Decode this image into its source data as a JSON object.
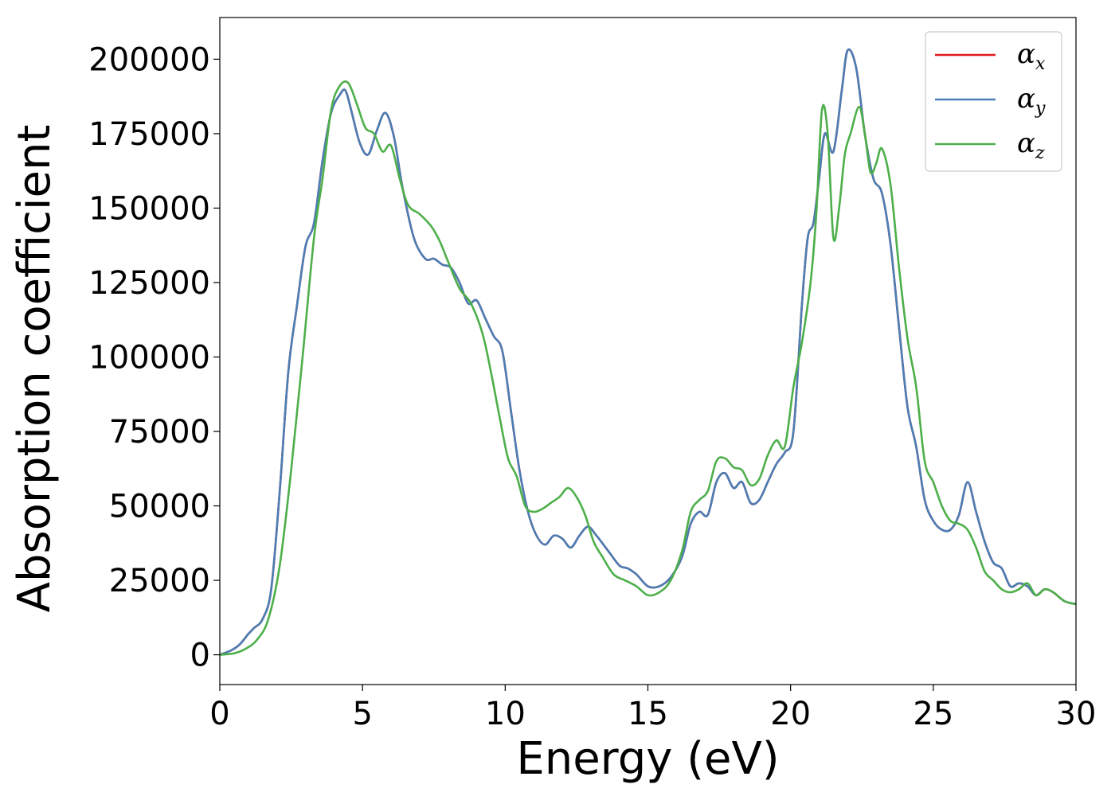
{
  "chart_data": {
    "type": "line",
    "title": "",
    "xlabel": "Energy (eV)",
    "ylabel": "Absorption coefficient",
    "xlim": [
      0,
      30
    ],
    "ylim": [
      -10000,
      214000
    ],
    "xticks": [
      0,
      5,
      10,
      15,
      20,
      25,
      30
    ],
    "yticks": [
      0,
      25000,
      50000,
      75000,
      100000,
      125000,
      150000,
      175000,
      200000
    ],
    "grid": false,
    "legend_position": "top-right",
    "series": [
      {
        "name": "α",
        "subscript": "x",
        "color": "#e41a1c",
        "x": [
          0,
          0.4,
          0.7,
          1.0,
          1.2,
          1.5,
          1.8,
          2.1,
          2.4,
          2.7,
          3.0,
          3.3,
          3.6,
          3.9,
          4.2,
          4.4,
          4.6,
          4.9,
          5.2,
          5.5,
          5.8,
          6.1,
          6.4,
          6.8,
          7.2,
          7.5,
          7.8,
          8.1,
          8.4,
          8.7,
          9.0,
          9.3,
          9.6,
          9.9,
          10.2,
          10.5,
          10.8,
          11.1,
          11.4,
          11.7,
          12.0,
          12.3,
          12.6,
          12.9,
          13.2,
          13.6,
          14.0,
          14.3,
          14.6,
          15.0,
          15.4,
          15.8,
          16.2,
          16.5,
          16.8,
          17.1,
          17.4,
          17.7,
          18.0,
          18.3,
          18.6,
          18.9,
          19.2,
          19.5,
          19.8,
          20.1,
          20.4,
          20.6,
          20.8,
          21.0,
          21.2,
          21.5,
          21.8,
          22.0,
          22.3,
          22.6,
          22.9,
          23.2,
          23.5,
          23.8,
          24.1,
          24.4,
          24.7,
          25.0,
          25.3,
          25.6,
          25.9,
          26.2,
          26.5,
          26.8,
          27.1,
          27.4,
          27.7,
          28.0,
          28.3,
          28.6,
          28.9,
          29.2,
          29.6,
          30.0
        ],
        "values": [
          0,
          1500,
          3500,
          7000,
          9000,
          12000,
          22000,
          55000,
          95000,
          117000,
          137000,
          145000,
          166000,
          182000,
          188000,
          189500,
          183000,
          172000,
          168000,
          176000,
          182000,
          174000,
          157000,
          140000,
          133000,
          133000,
          131000,
          130000,
          125000,
          118000,
          119000,
          113000,
          107000,
          102000,
          82000,
          62000,
          48000,
          40000,
          37000,
          40000,
          39000,
          36000,
          40000,
          43000,
          40000,
          35000,
          30000,
          29000,
          27000,
          23000,
          23000,
          26000,
          33000,
          44000,
          48000,
          47000,
          58000,
          61000,
          56000,
          58000,
          51000,
          52000,
          58000,
          64000,
          68000,
          75000,
          118000,
          140000,
          145000,
          160000,
          175000,
          169000,
          190000,
          203000,
          197000,
          175000,
          160000,
          155000,
          138000,
          110000,
          83000,
          70000,
          52000,
          45000,
          42000,
          42000,
          47000,
          58000,
          48000,
          38000,
          31000,
          29000,
          23000,
          24000,
          23000,
          20000,
          22000,
          21000,
          18000,
          17000
        ]
      },
      {
        "name": "α",
        "subscript": "y",
        "color": "#4a7eb5",
        "x": [
          0,
          0.4,
          0.7,
          1.0,
          1.2,
          1.5,
          1.8,
          2.1,
          2.4,
          2.7,
          3.0,
          3.3,
          3.6,
          3.9,
          4.2,
          4.4,
          4.6,
          4.9,
          5.2,
          5.5,
          5.8,
          6.1,
          6.4,
          6.8,
          7.2,
          7.5,
          7.8,
          8.1,
          8.4,
          8.7,
          9.0,
          9.3,
          9.6,
          9.9,
          10.2,
          10.5,
          10.8,
          11.1,
          11.4,
          11.7,
          12.0,
          12.3,
          12.6,
          12.9,
          13.2,
          13.6,
          14.0,
          14.3,
          14.6,
          15.0,
          15.4,
          15.8,
          16.2,
          16.5,
          16.8,
          17.1,
          17.4,
          17.7,
          18.0,
          18.3,
          18.6,
          18.9,
          19.2,
          19.5,
          19.8,
          20.1,
          20.4,
          20.6,
          20.8,
          21.0,
          21.2,
          21.5,
          21.8,
          22.0,
          22.3,
          22.6,
          22.9,
          23.2,
          23.5,
          23.8,
          24.1,
          24.4,
          24.7,
          25.0,
          25.3,
          25.6,
          25.9,
          26.2,
          26.5,
          26.8,
          27.1,
          27.4,
          27.7,
          28.0,
          28.3,
          28.6,
          28.9,
          29.2,
          29.6,
          30.0
        ],
        "values": [
          0,
          1500,
          3500,
          7000,
          9000,
          12000,
          22000,
          55000,
          95000,
          117000,
          137000,
          145000,
          166000,
          182000,
          188000,
          189500,
          183000,
          172000,
          168000,
          176000,
          182000,
          174000,
          157000,
          140000,
          133000,
          133000,
          131000,
          130000,
          125000,
          118000,
          119000,
          113000,
          107000,
          102000,
          82000,
          62000,
          48000,
          40000,
          37000,
          40000,
          39000,
          36000,
          40000,
          43000,
          40000,
          35000,
          30000,
          29000,
          27000,
          23000,
          23000,
          26000,
          33000,
          44000,
          48000,
          47000,
          58000,
          61000,
          56000,
          58000,
          51000,
          52000,
          58000,
          64000,
          68000,
          75000,
          118000,
          140000,
          145000,
          160000,
          175000,
          169000,
          190000,
          203000,
          197000,
          175000,
          160000,
          155000,
          138000,
          110000,
          83000,
          70000,
          52000,
          45000,
          42000,
          42000,
          47000,
          58000,
          48000,
          38000,
          31000,
          29000,
          23000,
          24000,
          23000,
          20000,
          22000,
          21000,
          18000,
          17000
        ]
      },
      {
        "name": "α",
        "subscript": "z",
        "color": "#4daf4a",
        "x": [
          0,
          0.5,
          0.9,
          1.3,
          1.7,
          2.1,
          2.5,
          2.9,
          3.3,
          3.6,
          3.9,
          4.2,
          4.5,
          4.8,
          5.1,
          5.4,
          5.7,
          6.0,
          6.3,
          6.6,
          7.0,
          7.4,
          7.7,
          8.0,
          8.4,
          8.8,
          9.2,
          9.5,
          9.8,
          10.1,
          10.4,
          10.7,
          11.0,
          11.3,
          11.6,
          11.9,
          12.2,
          12.5,
          12.8,
          13.1,
          13.4,
          13.8,
          14.2,
          14.6,
          15.0,
          15.4,
          15.8,
          16.2,
          16.5,
          16.8,
          17.1,
          17.4,
          17.7,
          18.0,
          18.3,
          18.6,
          18.9,
          19.2,
          19.5,
          19.8,
          20.1,
          20.4,
          20.7,
          20.9,
          21.1,
          21.3,
          21.5,
          21.7,
          21.9,
          22.1,
          22.4,
          22.6,
          22.8,
          23.0,
          23.2,
          23.5,
          23.8,
          24.1,
          24.4,
          24.7,
          25.0,
          25.3,
          25.6,
          25.9,
          26.2,
          26.5,
          26.8,
          27.1,
          27.4,
          27.7,
          28.0,
          28.3,
          28.6,
          28.9,
          29.2,
          29.6,
          30.0
        ],
        "values": [
          0,
          500,
          2000,
          5000,
          12000,
          30000,
          62000,
          100000,
          140000,
          160000,
          183000,
          191000,
          192000,
          185000,
          177000,
          175000,
          169000,
          171000,
          160000,
          151000,
          148000,
          144000,
          139000,
          132000,
          123000,
          118000,
          108000,
          95000,
          80000,
          66000,
          60000,
          50000,
          48000,
          49000,
          51000,
          53000,
          56000,
          53000,
          47000,
          38000,
          33000,
          27000,
          25000,
          23000,
          20000,
          21000,
          25000,
          35000,
          48000,
          52000,
          55000,
          65000,
          66000,
          63000,
          62000,
          57000,
          59000,
          67000,
          72000,
          70000,
          90000,
          105000,
          125000,
          148000,
          183000,
          175000,
          140000,
          150000,
          168000,
          175000,
          184000,
          175000,
          162000,
          165000,
          170000,
          158000,
          130000,
          106000,
          90000,
          65000,
          58000,
          50000,
          45000,
          44000,
          42000,
          36000,
          28000,
          25000,
          22000,
          21000,
          22000,
          24000,
          20000,
          22000,
          21000,
          18000,
          17000
        ]
      }
    ]
  }
}
